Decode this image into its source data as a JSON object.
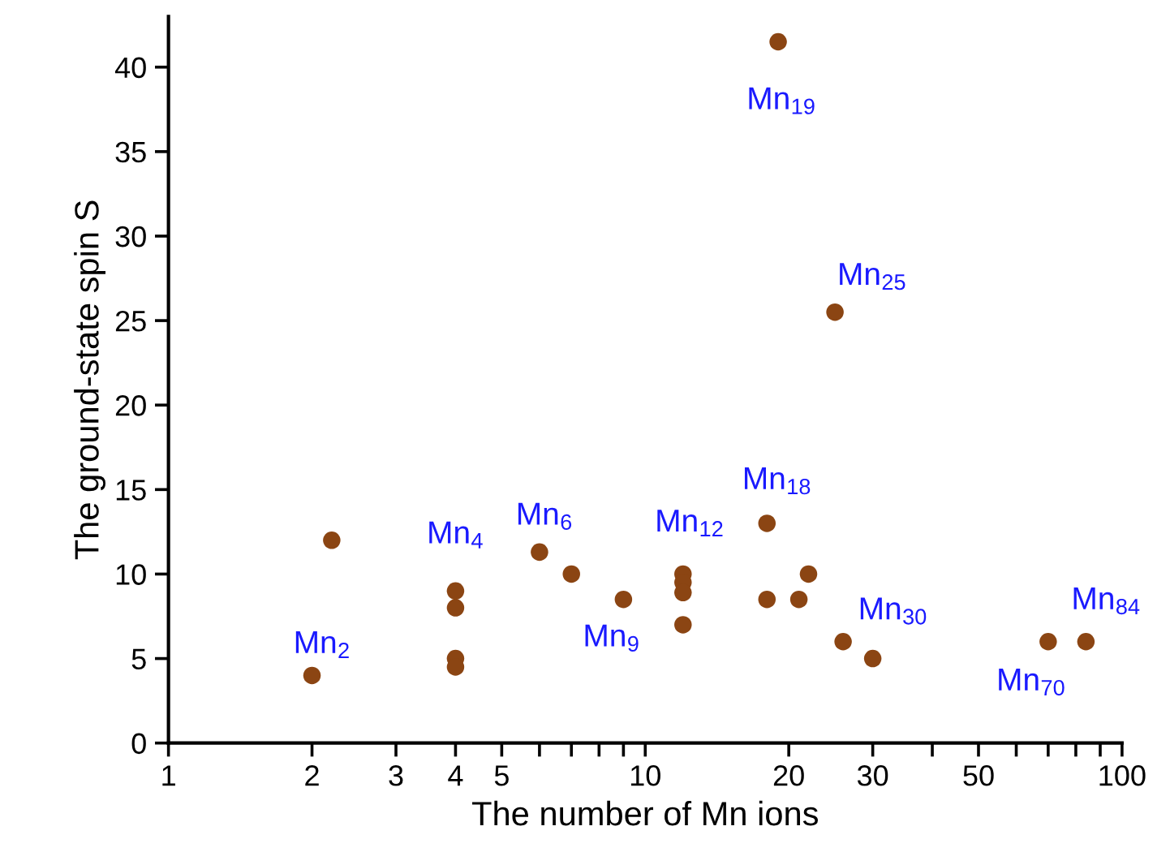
{
  "chart_data": {
    "type": "scatter",
    "xlabel": "The number of Mn ions",
    "ylabel": "The ground-state spin S",
    "x": [
      2,
      2.2,
      4,
      4,
      4,
      4,
      6,
      7,
      9,
      12,
      12,
      12,
      12,
      18,
      18,
      19,
      21,
      22,
      25,
      26,
      30,
      70,
      84
    ],
    "series": [
      {
        "color": "#8b4513",
        "values": [
          4,
          12,
          9,
          8,
          5,
          4.5,
          11.3,
          10,
          8.5,
          10,
          9.5,
          8.9,
          7,
          13,
          8.5,
          41.5,
          8.5,
          10,
          25.5,
          6,
          5,
          6,
          6
        ]
      }
    ],
    "marker": "circle",
    "log": "x",
    "grid": false,
    "xlim": [
      1,
      100
    ],
    "ylim": [
      0,
      43
    ],
    "xticks": [
      1,
      2,
      3,
      4,
      5,
      {
        "value": 6,
        "label": null
      },
      {
        "value": 7,
        "label": null
      },
      {
        "value": 8,
        "label": null
      },
      {
        "value": 9,
        "label": null
      },
      10,
      20,
      30,
      {
        "value": 40,
        "label": null
      },
      50,
      {
        "value": 60,
        "label": null
      },
      {
        "value": 70,
        "label": null
      },
      {
        "value": 80,
        "label": null
      },
      {
        "value": 90,
        "label": null
      },
      100
    ],
    "yticks": [
      0,
      5,
      10,
      15,
      20,
      25,
      30,
      35,
      40
    ],
    "annotations": [
      {
        "text": "Mn$_{2}$",
        "x": 2,
        "y": 4
      },
      {
        "text": "Mn$_{4}$",
        "x": 4,
        "y": 9
      },
      {
        "text": "Mn$_{6}$",
        "x": 6,
        "y": 11.3
      },
      {
        "text": "Mn$_{9}$",
        "x": 9,
        "y": 8.5
      },
      {
        "text": "Mn$_{12}$",
        "x": 12,
        "y": 10
      },
      {
        "text": "Mn$_{18}$",
        "x": 18,
        "y": 13
      },
      {
        "text": "Mn$_{19}$",
        "x": 19,
        "y": 41.5
      },
      {
        "text": "Mn$_{25}$",
        "x": 25,
        "y": 25.5
      },
      {
        "text": "Mn$_{30}$",
        "x": 30,
        "y": 5
      },
      {
        "text": "Mn$_{70}$",
        "x": 70,
        "y": 6
      },
      {
        "text": "Mn$_{84}$",
        "x": 84,
        "y": 6
      }
    ]
  }
}
